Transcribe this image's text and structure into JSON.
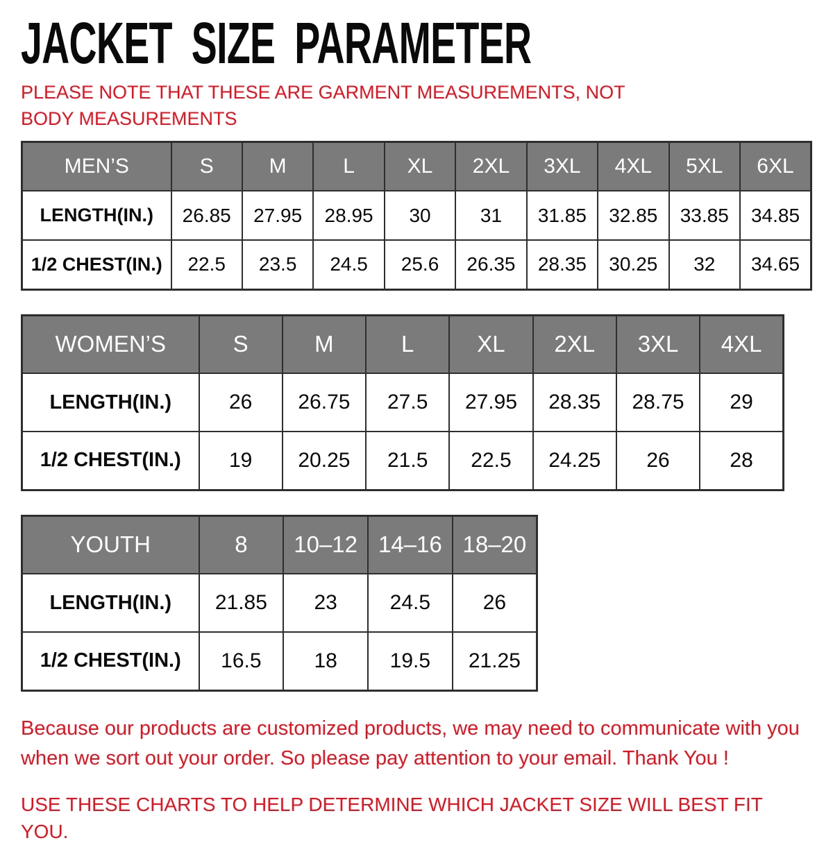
{
  "title": "JACKET SIZE PARAMETER",
  "note": "PLEASE NOTE THAT THESE ARE GARMENT MEASUREMENTS, NOT BODY MEASUREMENTS",
  "tables": [
    {
      "key": "mens",
      "name": "MEN’S",
      "sizes": [
        "S",
        "M",
        "L",
        "XL",
        "2XL",
        "3XL",
        "4XL",
        "5XL",
        "6XL"
      ],
      "rows": [
        {
          "label": "LENGTH(IN.)",
          "values": [
            "26.85",
            "27.95",
            "28.95",
            "30",
            "31",
            "31.85",
            "32.85",
            "33.85",
            "34.85"
          ]
        },
        {
          "label": "1/2 CHEST(IN.)",
          "values": [
            "22.5",
            "23.5",
            "24.5",
            "25.6",
            "26.35",
            "28.35",
            "30.25",
            "32",
            "34.65"
          ]
        }
      ]
    },
    {
      "key": "womens",
      "name": "WOMEN’S",
      "sizes": [
        "S",
        "M",
        "L",
        "XL",
        "2XL",
        "3XL",
        "4XL"
      ],
      "rows": [
        {
          "label": "LENGTH(IN.)",
          "values": [
            "26",
            "26.75",
            "27.5",
            "27.95",
            "28.35",
            "28.75",
            "29"
          ]
        },
        {
          "label": "1/2 CHEST(IN.)",
          "values": [
            "19",
            "20.25",
            "21.5",
            "22.5",
            "24.25",
            "26",
            "28"
          ]
        }
      ]
    },
    {
      "key": "youth",
      "name": "YOUTH",
      "sizes": [
        "8",
        "10–12",
        "14–16",
        "18–20"
      ],
      "rows": [
        {
          "label": "LENGTH(IN.)",
          "values": [
            "21.85",
            "23",
            "24.5",
            "26"
          ]
        },
        {
          "label": "1/2 CHEST(IN.)",
          "values": [
            "16.5",
            "18",
            "19.5",
            "21.25"
          ]
        }
      ]
    }
  ],
  "footer": {
    "paragraph": "Because our products are customized products, we may need to communicate with you when we sort out your order. So please pay attention to your email. Thank You !",
    "charts_note": "USE THESE CHARTS TO HELP DETERMINE WHICH JACKET SIZE WILL BEST FIT YOU."
  },
  "colors": {
    "header_bg": "#7b7b7b",
    "header_text": "#ffffff",
    "border": "#2e2e2e",
    "note_red": "#e8101c",
    "title_black": "#0a0a0a"
  }
}
